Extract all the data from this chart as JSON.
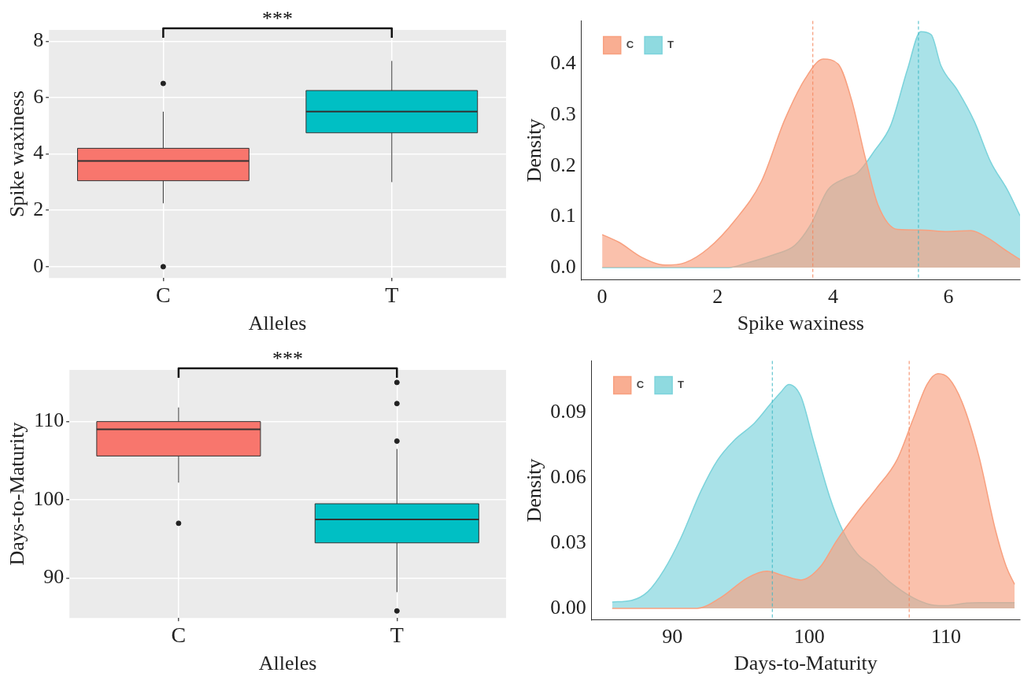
{
  "chart_data": [
    {
      "type": "box",
      "categories": [
        "C",
        "T"
      ],
      "colors": [
        "#f8766d",
        "#00bfc4"
      ],
      "xlabel": "Alleles",
      "ylabel": "Spike waxiness",
      "ylim": [
        -0.4,
        8.4
      ],
      "yticks": [
        0,
        2,
        4,
        6,
        8
      ],
      "grid": true,
      "annotations": [
        "***"
      ],
      "boxes": [
        {
          "low": 2.25,
          "q1": 3.05,
          "median": 3.75,
          "q3": 4.2,
          "high": 5.5,
          "outliers": [
            6.5,
            0
          ]
        },
        {
          "low": 3.0,
          "q1": 4.75,
          "median": 5.5,
          "q3": 6.25,
          "high": 7.3
        }
      ]
    },
    {
      "type": "area",
      "xlabel": "Spike waxiness",
      "ylabel": "Density",
      "xlim": [
        -0.36,
        7.24
      ],
      "xticks": [
        0,
        2,
        4,
        6
      ],
      "ylim": [
        -0.024,
        0.485
      ],
      "yticks": [
        {
          "value": 0,
          "label": "0.0"
        },
        0.1,
        0.2,
        0.3,
        0.4
      ],
      "legend": "top left",
      "grid": false,
      "ref_lines": [
        {
          "axis": "x",
          "value": 3.65,
          "color": "#f4845c",
          "line_style": "dashed"
        },
        {
          "axis": "x",
          "value": 5.48,
          "color": "#3fb8c4",
          "line_style": "dashed"
        }
      ],
      "series": [
        {
          "name": "C",
          "color": "#f8a07f",
          "x": [
            0,
            0.29,
            0.69,
            1.09,
            1.44,
            1.84,
            2.3,
            2.76,
            3.16,
            3.51,
            3.83,
            4.09,
            4.32,
            4.55,
            4.78,
            5.12,
            5.52,
            5.98,
            6.39,
            6.67,
            7.02,
            7.24
          ],
          "values": [
            0.065,
            0.05,
            0.02,
            0.005,
            0.01,
            0.038,
            0.093,
            0.17,
            0.29,
            0.37,
            0.41,
            0.4,
            0.33,
            0.22,
            0.123,
            0.075,
            0.074,
            0.071,
            0.073,
            0.059,
            0.032,
            0.016
          ]
        },
        {
          "name": "T",
          "color": "#7bd3db",
          "x": [
            0,
            2.19,
            2.53,
            2.99,
            3.34,
            3.62,
            3.91,
            4.2,
            4.43,
            4.72,
            5.0,
            5.29,
            5.52,
            5.7,
            5.87,
            6.16,
            6.45,
            6.73,
            7.02,
            7.24
          ],
          "values": [
            0,
            0,
            0.01,
            0.026,
            0.044,
            0.086,
            0.153,
            0.175,
            0.187,
            0.23,
            0.28,
            0.39,
            0.464,
            0.458,
            0.397,
            0.348,
            0.287,
            0.208,
            0.153,
            0.102
          ]
        }
      ]
    },
    {
      "type": "box",
      "categories": [
        "C",
        "T"
      ],
      "colors": [
        "#f8766d",
        "#00bfc4"
      ],
      "xlabel": "Alleles",
      "ylabel": "Days-to-Maturity",
      "ylim": [
        84.9,
        116.6
      ],
      "yticks": [
        90,
        100,
        110
      ],
      "grid": true,
      "annotations": [
        "***"
      ],
      "boxes": [
        {
          "low": 102.2,
          "q1": 105.6,
          "median": 109,
          "q3": 110,
          "high": 111.8,
          "outliers": [
            97
          ]
        },
        {
          "low": 88.2,
          "q1": 94.5,
          "median": 97.5,
          "q3": 99.5,
          "high": 106.5,
          "outliers": [
            115,
            112.3,
            107.5,
            85.8
          ]
        }
      ]
    },
    {
      "type": "area",
      "xlabel": "Days-to-Maturity",
      "ylabel": "Density",
      "xlim": [
        84.1,
        115.4
      ],
      "xticks": [
        90,
        100,
        110
      ],
      "ylim": [
        -0.0053,
        0.1135
      ],
      "yticks": [
        {
          "value": 0,
          "label": "0.00"
        },
        {
          "value": 0.03,
          "label": "0.03"
        },
        {
          "value": 0.06,
          "label": "0.06"
        },
        {
          "value": 0.09,
          "label": "0.09"
        }
      ],
      "legend": "top left",
      "grid": false,
      "ref_lines": [
        {
          "axis": "x",
          "value": 97.3,
          "color": "#3fb8c4",
          "line_style": "dashed"
        },
        {
          "axis": "x",
          "value": 107.3,
          "color": "#f4845c",
          "line_style": "dashed"
        }
      ],
      "series": [
        {
          "name": "C",
          "color": "#f8a07f",
          "x": [
            85.6,
            91.8,
            93.5,
            95.5,
            96.9,
            98.1,
            99.4,
            100.8,
            102,
            103.5,
            104.9,
            106.4,
            107.6,
            108.6,
            109.4,
            110.2,
            111.2,
            112.4,
            113.6,
            114.4,
            115
          ],
          "values": [
            0,
            0,
            0.0048,
            0.014,
            0.017,
            0.015,
            0.013,
            0.019,
            0.031,
            0.044,
            0.055,
            0.068,
            0.087,
            0.1027,
            0.1077,
            0.1055,
            0.094,
            0.0696,
            0.036,
            0.019,
            0.011
          ]
        },
        {
          "name": "T",
          "color": "#7bd3db",
          "x": [
            85.6,
            87,
            88.2,
            89.4,
            90.6,
            92.1,
            93.3,
            94.5,
            96,
            97.2,
            97.9,
            98.5,
            99.4,
            100.3,
            101.5,
            102.5,
            103.5,
            104.7,
            105.9,
            107.6,
            109.1,
            110,
            111.5,
            112.4,
            115
          ],
          "values": [
            0.0029,
            0.0036,
            0.0076,
            0.0177,
            0.032,
            0.054,
            0.068,
            0.077,
            0.085,
            0.094,
            0.099,
            0.1027,
            0.097,
            0.077,
            0.051,
            0.035,
            0.025,
            0.019,
            0.012,
            0.0048,
            0.0014,
            0.0012,
            0.0024,
            0.0026,
            0.0026
          ]
        }
      ]
    }
  ]
}
